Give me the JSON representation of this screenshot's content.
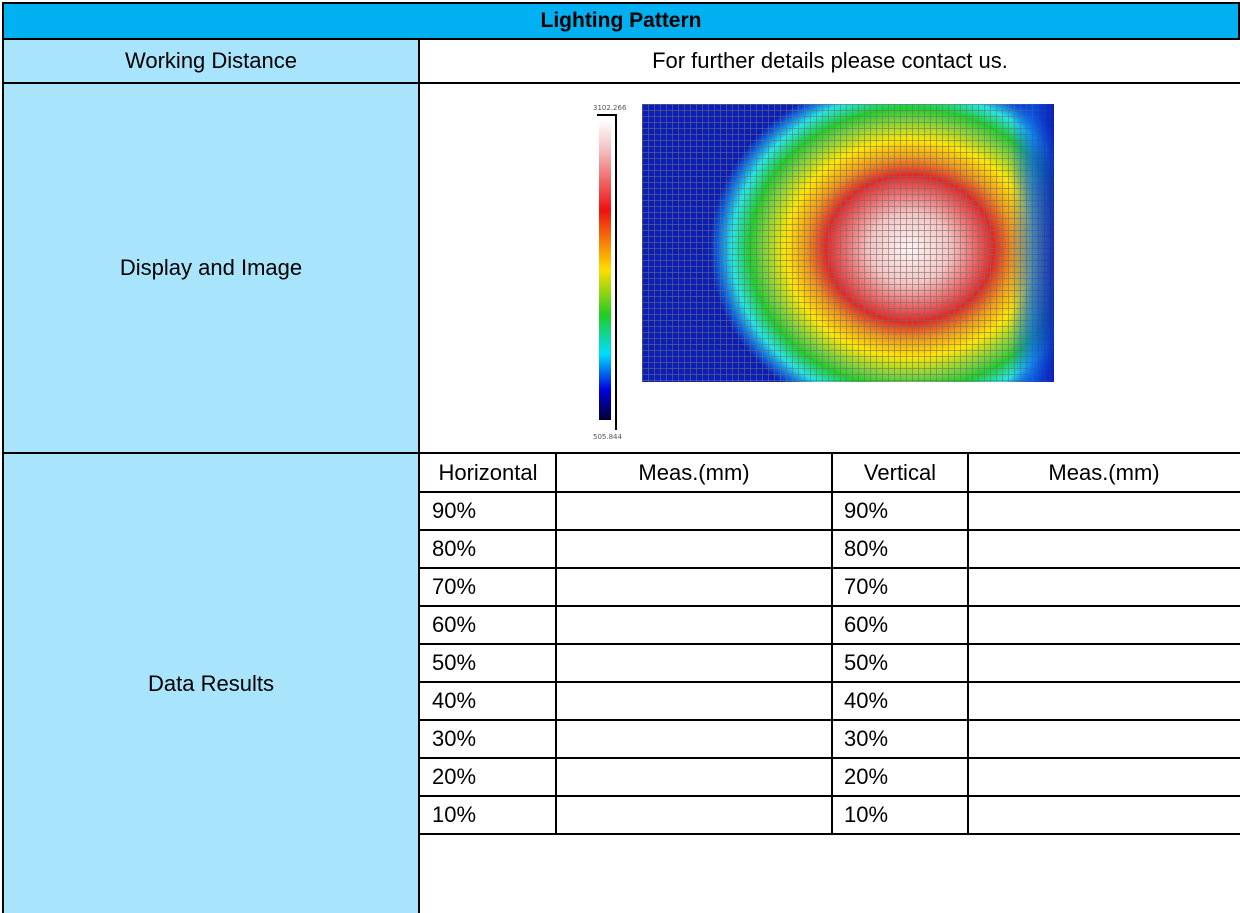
{
  "title": "Lighting Pattern",
  "rows": {
    "working_distance": {
      "label": "Working Distance",
      "value": "For further details please contact us."
    },
    "display_image": {
      "label": "Display and Image",
      "heatmap": {
        "scale_max": "3102.266",
        "scale_min": "505.844"
      }
    },
    "data_results": {
      "label": "Data Results",
      "headers": [
        "Horizontal",
        "Meas.(mm)",
        "Vertical",
        "Meas.(mm)"
      ],
      "rows": [
        {
          "h": "90%",
          "hm": "",
          "v": "90%",
          "vm": ""
        },
        {
          "h": "80%",
          "hm": "",
          "v": "80%",
          "vm": ""
        },
        {
          "h": "70%",
          "hm": "",
          "v": "70%",
          "vm": ""
        },
        {
          "h": "60%",
          "hm": "",
          "v": "60%",
          "vm": ""
        },
        {
          "h": "50%",
          "hm": "",
          "v": "50%",
          "vm": ""
        },
        {
          "h": "40%",
          "hm": "",
          "v": "40%",
          "vm": ""
        },
        {
          "h": "30%",
          "hm": "",
          "v": "30%",
          "vm": ""
        },
        {
          "h": "20%",
          "hm": "",
          "v": "20%",
          "vm": ""
        },
        {
          "h": "10%",
          "hm": "",
          "v": "10%",
          "vm": ""
        }
      ]
    }
  },
  "colors": {
    "title_bg": "#00B0F0",
    "label_bg": "#A8E4FC"
  }
}
